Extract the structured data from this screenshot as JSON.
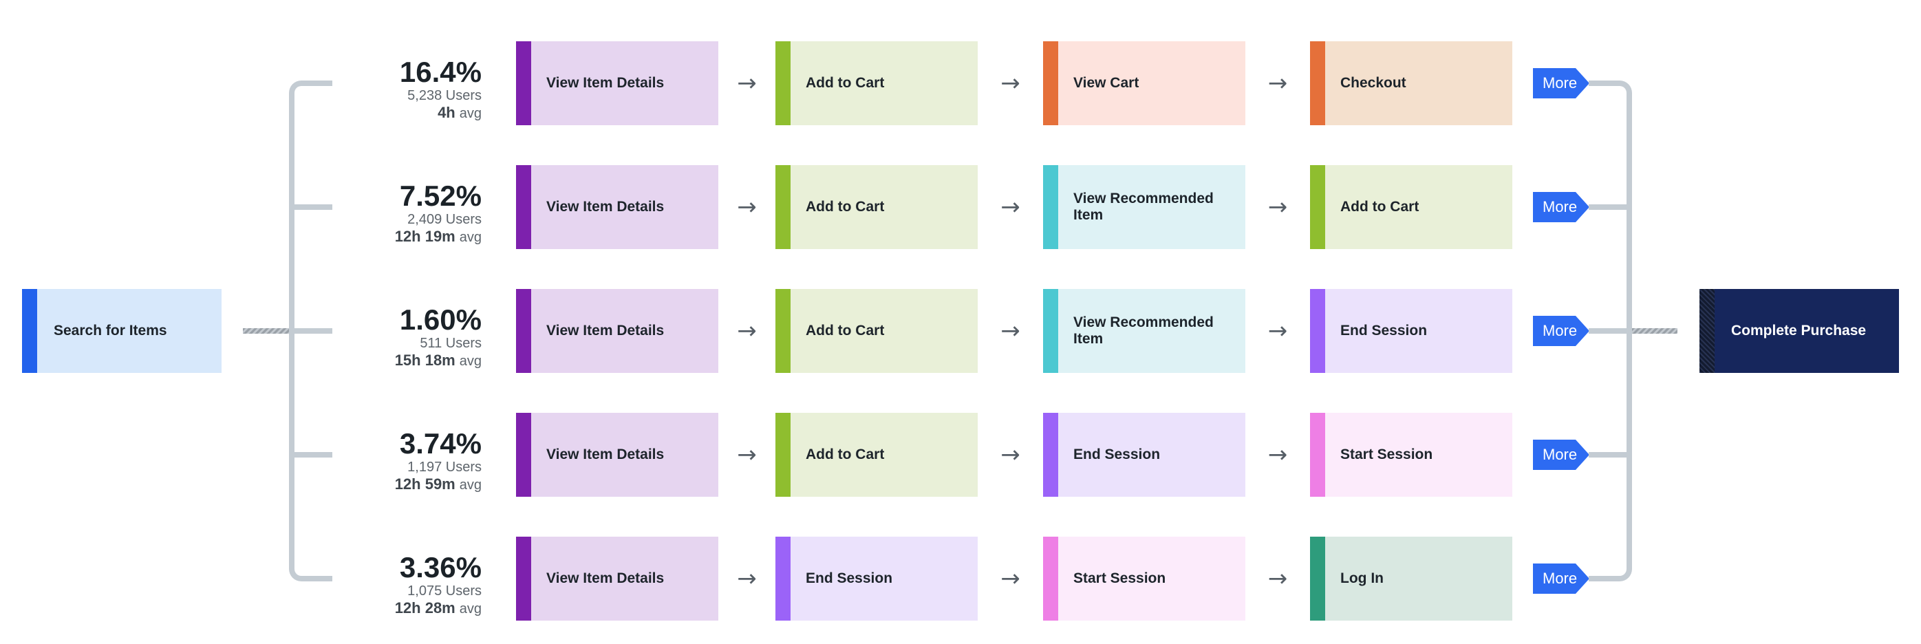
{
  "source_node": {
    "label": "Search for Items",
    "bar_color": "#2262ec",
    "bg_color": "#d7e8fb"
  },
  "target_node": {
    "label": "Complete Purchase",
    "bar_color": "#131b30",
    "bg_color": "#16265c"
  },
  "labels": {
    "more": "More",
    "avg_suffix": "avg"
  },
  "icons": {
    "arrow_right": "→"
  },
  "connector_colors": {
    "bracket_line": "#c4ccd3",
    "hatched_line": "#9aa1a8",
    "more_button_blue": "#2d6bf2"
  },
  "step_colors": {
    "view_item_details": {
      "bar": "#7d21ad",
      "bg": "#e6d5f0"
    },
    "add_to_cart": {
      "bar": "#8fbe2f",
      "bg": "#e9f0d8"
    },
    "view_cart": {
      "bar": "#e5703a",
      "bg": "#fde3dd"
    },
    "checkout": {
      "bar": "#e5703a",
      "bg": "#f4e0cd"
    },
    "view_recommended_item": {
      "bar": "#4cc8d1",
      "bg": "#def2f5"
    },
    "end_session": {
      "bar": "#9b63f8",
      "bg": "#ebe2fc"
    },
    "start_session": {
      "bar": "#ee7fe5",
      "bg": "#fcebfb"
    },
    "log_in": {
      "bar": "#2e9c7c",
      "bg": "#d9e8e1"
    }
  },
  "paths": [
    {
      "percent": "16.4%",
      "users": "5,238 Users",
      "avg_value": "4h",
      "steps": [
        {
          "label": "View Item Details",
          "type": "view_item_details"
        },
        {
          "label": "Add to Cart",
          "type": "add_to_cart"
        },
        {
          "label": "View Cart",
          "type": "view_cart"
        },
        {
          "label": "Checkout",
          "type": "checkout"
        }
      ]
    },
    {
      "percent": "7.52%",
      "users": "2,409 Users",
      "avg_value": "12h 19m",
      "steps": [
        {
          "label": "View Item Details",
          "type": "view_item_details"
        },
        {
          "label": "Add to Cart",
          "type": "add_to_cart"
        },
        {
          "label": "View Recommended Item",
          "type": "view_recommended_item"
        },
        {
          "label": "Add to Cart",
          "type": "add_to_cart"
        }
      ]
    },
    {
      "percent": "1.60%",
      "users": "511 Users",
      "avg_value": "15h 18m",
      "steps": [
        {
          "label": "View Item Details",
          "type": "view_item_details"
        },
        {
          "label": "Add to Cart",
          "type": "add_to_cart"
        },
        {
          "label": "View Recommended Item",
          "type": "view_recommended_item"
        },
        {
          "label": "End Session",
          "type": "end_session"
        }
      ]
    },
    {
      "percent": "3.74%",
      "users": "1,197 Users",
      "avg_value": "12h 59m",
      "steps": [
        {
          "label": "View Item Details",
          "type": "view_item_details"
        },
        {
          "label": "Add to Cart",
          "type": "add_to_cart"
        },
        {
          "label": "End Session",
          "type": "end_session"
        },
        {
          "label": "Start Session",
          "type": "start_session"
        }
      ]
    },
    {
      "percent": "3.36%",
      "users": "1,075 Users",
      "avg_value": "12h 28m",
      "steps": [
        {
          "label": "View Item Details",
          "type": "view_item_details"
        },
        {
          "label": "End Session",
          "type": "end_session"
        },
        {
          "label": "Start Session",
          "type": "start_session"
        },
        {
          "label": "Log In",
          "type": "log_in"
        }
      ]
    }
  ]
}
